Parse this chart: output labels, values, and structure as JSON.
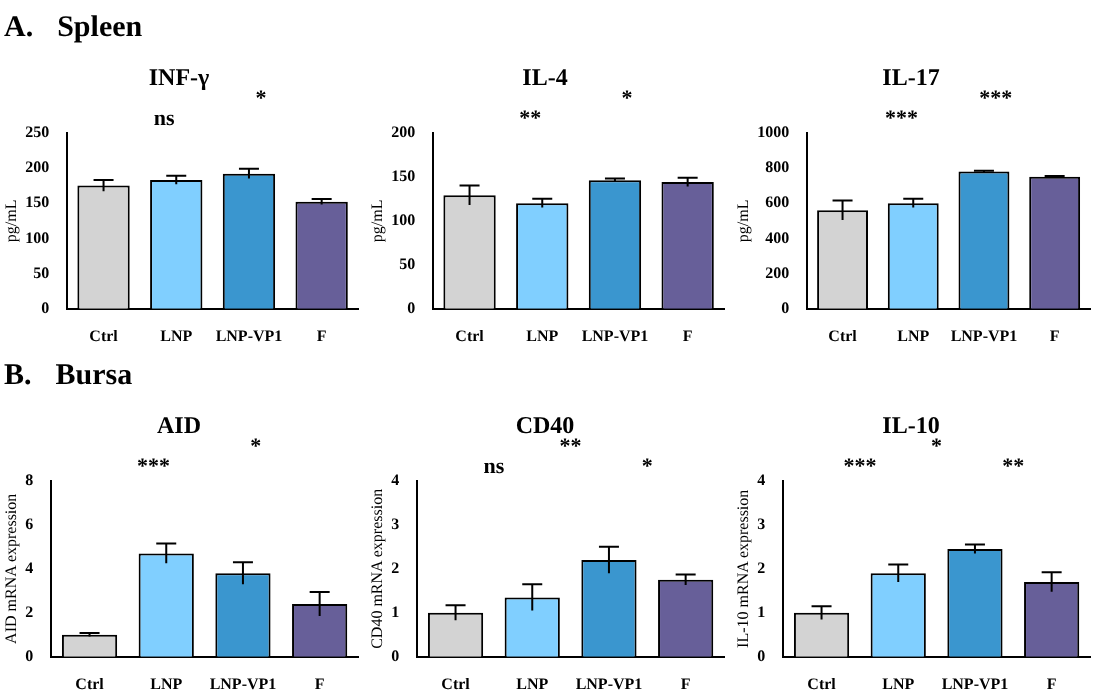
{
  "chart_data": [
    {
      "type": "other",
      "annotations": [
        "A.",
        "Spleen"
      ]
    },
    {
      "type": "bar",
      "title": "INF-γ",
      "ylabel": "pg/mL",
      "categories": [
        "Ctrl",
        "LNP",
        "LNP-VP1",
        "F"
      ],
      "colors": [
        "#d3d3d3",
        "#80cfff",
        "#3a96cf",
        "#675f99"
      ],
      "values": [
        175,
        183,
        192,
        152
      ],
      "errors": [
        8,
        6,
        7,
        4
      ],
      "ylim": [
        0,
        250
      ],
      "yticks": [
        0,
        50,
        100,
        150,
        200,
        250
      ],
      "annotations": [
        "ns",
        "*"
      ]
    },
    {
      "type": "bar",
      "title": "IL-4",
      "ylabel": "pg/mL",
      "categories": [
        "Ctrl",
        "LNP",
        "LNP-VP1",
        "F"
      ],
      "colors": [
        "#d3d3d3",
        "#80cfff",
        "#3a96cf",
        "#675f99"
      ],
      "values": [
        129,
        120,
        146,
        144
      ],
      "errors": [
        11,
        5,
        2,
        5
      ],
      "ylim": [
        0,
        200
      ],
      "yticks": [
        0,
        50,
        100,
        150,
        200
      ],
      "annotations": [
        "**",
        "*"
      ]
    },
    {
      "type": "bar",
      "title": "IL-17",
      "ylabel": "pg/mL",
      "categories": [
        "Ctrl",
        "LNP",
        "LNP-VP1",
        "F"
      ],
      "colors": [
        "#d3d3d3",
        "#80cfff",
        "#3a96cf",
        "#675f99"
      ],
      "values": [
        560,
        600,
        780,
        750
      ],
      "errors": [
        55,
        25,
        5,
        5
      ],
      "ylim": [
        0,
        1000
      ],
      "yticks": [
        0,
        200,
        400,
        600,
        800,
        1000
      ],
      "annotations": [
        "***",
        "***"
      ]
    },
    {
      "type": "other",
      "annotations": [
        "B.",
        "Bursa"
      ]
    },
    {
      "type": "bar",
      "title": "AID",
      "ylabel": "AID mRNA expression",
      "categories": [
        "Ctrl",
        "LNP",
        "LNP-VP1",
        "F"
      ],
      "colors": [
        "#d3d3d3",
        "#80cfff",
        "#3a96cf",
        "#675f99"
      ],
      "values": [
        1.0,
        4.7,
        3.8,
        2.4
      ],
      "errors": [
        0.08,
        0.45,
        0.5,
        0.55
      ],
      "ylim": [
        0,
        8
      ],
      "yticks": [
        0,
        2,
        4,
        6,
        8
      ],
      "annotations": [
        "***",
        "*"
      ]
    },
    {
      "type": "bar",
      "title": "CD40",
      "ylabel": "CD40 mRNA expression",
      "categories": [
        "Ctrl",
        "LNP",
        "LNP-VP1",
        "F"
      ],
      "colors": [
        "#d3d3d3",
        "#80cfff",
        "#3a96cf",
        "#675f99"
      ],
      "values": [
        1.0,
        1.35,
        2.2,
        1.75
      ],
      "errors": [
        0.17,
        0.3,
        0.3,
        0.12
      ],
      "ylim": [
        0,
        4
      ],
      "yticks": [
        0,
        1,
        2,
        3,
        4
      ],
      "annotations": [
        "ns",
        "**",
        "*"
      ]
    },
    {
      "type": "bar",
      "title": "IL-10",
      "ylabel": "IL-10 mRNA expression",
      "categories": [
        "Ctrl",
        "LNP",
        "LNP-VP1",
        "F"
      ],
      "colors": [
        "#d3d3d3",
        "#80cfff",
        "#3a96cf",
        "#675f99"
      ],
      "values": [
        1.0,
        1.9,
        2.45,
        1.7
      ],
      "errors": [
        0.15,
        0.2,
        0.1,
        0.22
      ],
      "ylim": [
        0,
        4
      ],
      "yticks": [
        0,
        1,
        2,
        3,
        4
      ],
      "annotations": [
        "***",
        "*",
        "**"
      ]
    }
  ]
}
